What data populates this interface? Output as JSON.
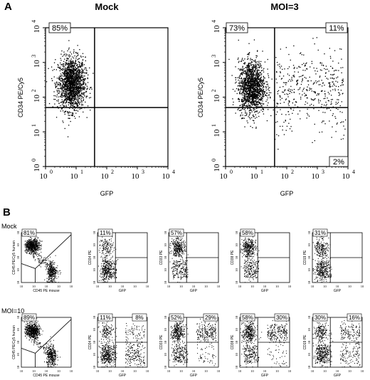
{
  "panel_labels": {
    "a": "A",
    "b": "B"
  },
  "row_labels": {
    "mock": "Mock",
    "moi10": "MOI=10"
  },
  "chart_data": [
    {
      "type": "scatter",
      "panel": "A",
      "title": "Mock",
      "xlabel": "GFP",
      "ylabel": "CD34 PE/Cy5",
      "x_scale": "log",
      "y_scale": "log",
      "xlim": [
        1,
        10000
      ],
      "ylim": [
        1,
        10000
      ],
      "xticks": [
        "10",
        "10",
        "10",
        "10",
        "10"
      ],
      "yticks": [
        "10",
        "10",
        "10",
        "10",
        "10"
      ],
      "tick_exponents": [
        "0",
        "1",
        "2",
        "3",
        "4"
      ],
      "gates": {
        "x": 40,
        "y": 50
      },
      "quadrants": {
        "upper_left": "85%"
      },
      "series": [
        {
          "clusters": [
            {
              "x": 7,
              "y": 250,
              "n": 1700
            }
          ]
        }
      ]
    },
    {
      "type": "scatter",
      "panel": "A",
      "title": "MOI=3",
      "xlabel": "GFP",
      "ylabel": "CD34 PE/Cy5",
      "x_scale": "log",
      "y_scale": "log",
      "xlim": [
        1,
        10000
      ],
      "ylim": [
        1,
        10000
      ],
      "xticks": [
        "10",
        "10",
        "10",
        "10",
        "10"
      ],
      "yticks": [
        "10",
        "10",
        "10",
        "10",
        "10"
      ],
      "tick_exponents": [
        "0",
        "1",
        "2",
        "3",
        "4"
      ],
      "gates": {
        "x": 40,
        "y": 50
      },
      "quadrants": {
        "upper_left": "73%",
        "upper_right": "11%",
        "lower_right": "2%"
      },
      "series": [
        {
          "clusters": [
            {
              "x": 7,
              "y": 200,
              "n": 1500
            },
            {
              "x": 400,
              "y": 150,
              "n": 420
            }
          ]
        }
      ]
    }
  ],
  "small_panels": {
    "first_xlabel": "CD45 PE mouse",
    "first_ylabel": "CD45 PE/Cy5 human",
    "xlabel": "GFP",
    "ylabels": [
      "CD34 PE",
      "CD33 PE",
      "CD38 PE",
      "CD19 PE"
    ],
    "tick_base": "10",
    "mock": [
      {
        "ul": "81%"
      },
      {
        "ul": "11%"
      },
      {
        "ul": "57%"
      },
      {
        "ul": "58%"
      },
      {
        "ul": "31%"
      }
    ],
    "moi10": [
      {
        "ul": "89%"
      },
      {
        "ul": "11%",
        "ur": "8%"
      },
      {
        "ul": "52%",
        "ur": "29%"
      },
      {
        "ul": "58%",
        "ur": "30%"
      },
      {
        "ul": "30%",
        "ur": "16%"
      }
    ]
  }
}
